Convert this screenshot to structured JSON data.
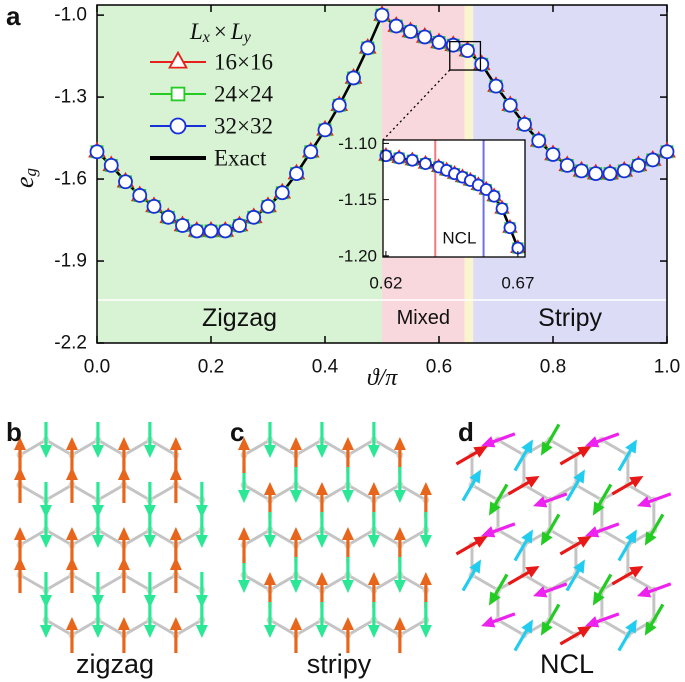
{
  "chart_data": [
    {
      "type": "line",
      "panel_label": "a",
      "xlabel": "ϑ/π",
      "ylabel": {
        "symbol": "e",
        "subscript": "g"
      },
      "legend_title": {
        "symbol1": "L",
        "sub1": "x",
        "operator": "×",
        "symbol2": "L",
        "sub2": "y"
      },
      "x": [
        0,
        0.025,
        0.05,
        0.075,
        0.1,
        0.125,
        0.15,
        0.175,
        0.2,
        0.225,
        0.25,
        0.275,
        0.3,
        0.325,
        0.35,
        0.375,
        0.4,
        0.425,
        0.45,
        0.475,
        0.5,
        0.525,
        0.55,
        0.575,
        0.6,
        0.625,
        0.65,
        0.675,
        0.7,
        0.725,
        0.75,
        0.775,
        0.8,
        0.825,
        0.85,
        0.875,
        0.9,
        0.925,
        0.95,
        0.975,
        1
      ],
      "series": [
        {
          "name": "16×16",
          "color": "#e8201c",
          "marker": "triangle",
          "values": [
            -1.5,
            -1.55,
            -1.61,
            -1.66,
            -1.7,
            -1.74,
            -1.77,
            -1.79,
            -1.79,
            -1.79,
            -1.77,
            -1.74,
            -1.7,
            -1.65,
            -1.58,
            -1.5,
            -1.42,
            -1.33,
            -1.23,
            -1.12,
            -1.0,
            -1.04,
            -1.06,
            -1.08,
            -1.1,
            -1.11,
            -1.13,
            -1.18,
            -1.26,
            -1.33,
            -1.4,
            -1.46,
            -1.51,
            -1.55,
            -1.57,
            -1.58,
            -1.58,
            -1.57,
            -1.55,
            -1.53,
            -1.5
          ]
        },
        {
          "name": "24×24",
          "color": "#22cc22",
          "marker": "square",
          "values": [
            -1.5,
            -1.55,
            -1.61,
            -1.66,
            -1.7,
            -1.74,
            -1.77,
            -1.79,
            -1.79,
            -1.79,
            -1.77,
            -1.74,
            -1.7,
            -1.65,
            -1.58,
            -1.5,
            -1.42,
            -1.33,
            -1.23,
            -1.12,
            -1.0,
            -1.04,
            -1.06,
            -1.08,
            -1.1,
            -1.11,
            -1.13,
            -1.18,
            -1.26,
            -1.33,
            -1.4,
            -1.46,
            -1.51,
            -1.55,
            -1.57,
            -1.58,
            -1.58,
            -1.57,
            -1.55,
            -1.53,
            -1.5
          ]
        },
        {
          "name": "32×32",
          "color": "#1830d8",
          "marker": "circle",
          "values": [
            -1.5,
            -1.55,
            -1.61,
            -1.66,
            -1.7,
            -1.74,
            -1.77,
            -1.79,
            -1.79,
            -1.79,
            -1.77,
            -1.74,
            -1.7,
            -1.65,
            -1.58,
            -1.5,
            -1.42,
            -1.33,
            -1.23,
            -1.12,
            -1.0,
            -1.04,
            -1.06,
            -1.08,
            -1.1,
            -1.11,
            -1.13,
            -1.18,
            -1.26,
            -1.33,
            -1.4,
            -1.46,
            -1.51,
            -1.55,
            -1.57,
            -1.58,
            -1.58,
            -1.57,
            -1.55,
            -1.53,
            -1.5
          ]
        },
        {
          "name": "Exact",
          "color": "#000000",
          "linestyle": "solid",
          "values": [
            -1.5,
            -1.55,
            -1.61,
            -1.66,
            -1.7,
            -1.74,
            -1.77,
            -1.79,
            -1.79,
            -1.79,
            -1.77,
            -1.74,
            -1.7,
            -1.65,
            -1.58,
            -1.5,
            -1.42,
            -1.33,
            -1.23,
            -1.12,
            -1.0,
            -1.04,
            -1.06,
            -1.08,
            -1.1,
            -1.11,
            -1.13,
            -1.18,
            -1.26,
            -1.33,
            -1.4,
            -1.46,
            -1.51,
            -1.55,
            -1.57,
            -1.58,
            -1.58,
            -1.57,
            -1.55,
            -1.53,
            -1.5
          ]
        }
      ],
      "regions": [
        {
          "name": "Zigzag",
          "from": 0,
          "to": 0.5,
          "color": "#d8f3d4"
        },
        {
          "name": "Mixed",
          "from": 0.5,
          "to": 0.645,
          "color": "#f8d8dc"
        },
        {
          "from": 0.645,
          "to": 0.66,
          "color": "#faf5cf"
        },
        {
          "name": "Stripy",
          "from": 0.66,
          "to": 1,
          "color": "#dcdcf7"
        }
      ],
      "xlim": [
        0,
        1
      ],
      "ylim": [
        -2.2,
        -0.963
      ],
      "xticks": [
        {
          "value": 0,
          "label": "0.0"
        },
        0.2,
        0.4,
        0.6,
        0.8,
        {
          "value": 1,
          "label": "1.0"
        }
      ],
      "yticks": [
        {
          "value": -1,
          "label": "-1.0"
        },
        -1.3,
        -1.6,
        -1.9,
        -2.2
      ]
    },
    {
      "type": "line",
      "inset": true,
      "x": [
        0.62,
        0.625,
        0.63,
        0.635,
        0.64,
        0.643,
        0.646,
        0.649,
        0.652,
        0.655,
        0.658,
        0.661,
        0.664,
        0.667,
        0.67
      ],
      "series": [
        {
          "name": "16×16",
          "color": "#e8201c",
          "marker": "triangle",
          "values": [
            -1.111,
            -1.113,
            -1.115,
            -1.118,
            -1.121,
            -1.124,
            -1.127,
            -1.13,
            -1.133,
            -1.137,
            -1.141,
            -1.147,
            -1.158,
            -1.175,
            -1.193
          ]
        },
        {
          "name": "24×24",
          "color": "#22cc22",
          "marker": "square",
          "values": [
            -1.111,
            -1.113,
            -1.115,
            -1.118,
            -1.121,
            -1.124,
            -1.127,
            -1.13,
            -1.133,
            -1.137,
            -1.141,
            -1.147,
            -1.158,
            -1.175,
            -1.193
          ]
        },
        {
          "name": "32×32",
          "color": "#1830d8",
          "marker": "circle",
          "values": [
            -1.111,
            -1.113,
            -1.115,
            -1.118,
            -1.121,
            -1.124,
            -1.127,
            -1.13,
            -1.133,
            -1.137,
            -1.141,
            -1.147,
            -1.158,
            -1.175,
            -1.193
          ]
        },
        {
          "name": "Exact",
          "color": "#000000",
          "linestyle": "solid",
          "values": [
            -1.111,
            -1.113,
            -1.115,
            -1.118,
            -1.121,
            -1.124,
            -1.127,
            -1.13,
            -1.133,
            -1.137,
            -1.141,
            -1.147,
            -1.158,
            -1.175,
            -1.193
          ]
        }
      ],
      "vlines": [
        {
          "x": 0.6387,
          "color": "#f07a80"
        },
        {
          "x": 0.657,
          "color": "#7070e0"
        }
      ],
      "annotation": "NCL",
      "xlim": [
        0.6189,
        0.6727
      ],
      "ylim": [
        -1.201,
        -1.097
      ],
      "xticks": [
        0.62,
        0.67
      ],
      "yticks": [
        {
          "value": -1.1,
          "label": "-1.10"
        },
        -1.15,
        {
          "value": -1.2,
          "label": "-1.20"
        }
      ]
    }
  ],
  "diagrams": [
    {
      "panel_label": "b",
      "caption": "zigzag"
    },
    {
      "panel_label": "c",
      "caption": "stripy"
    },
    {
      "panel_label": "d",
      "caption": "NCL"
    }
  ]
}
